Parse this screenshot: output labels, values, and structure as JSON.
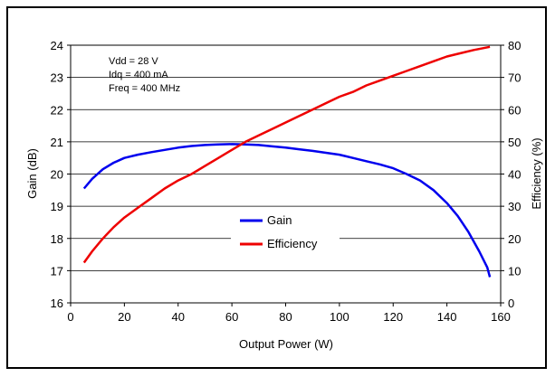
{
  "chart_data": {
    "type": "line",
    "xlabel": "Output Power (W)",
    "ylabel": "Gain (dB)",
    "y2label": "Efficiency (%)",
    "xlim": [
      0,
      160
    ],
    "ylim": [
      16,
      24
    ],
    "y2lim": [
      0,
      80
    ],
    "xticks": [
      0,
      20,
      40,
      60,
      80,
      100,
      120,
      140,
      160
    ],
    "yticks": [
      16,
      17,
      18,
      19,
      20,
      21,
      22,
      23,
      24
    ],
    "y2ticks": [
      0,
      10,
      20,
      30,
      40,
      50,
      60,
      70,
      80
    ],
    "grid": "horizontal",
    "legend": "center",
    "annotations": [
      "Vdd = 28 V",
      "Idq = 400 mA",
      "Freq = 400 MHz"
    ],
    "series": [
      {
        "name": "Gain",
        "axis": "left",
        "color": "#0000ee",
        "x": [
          5,
          8,
          12,
          16,
          20,
          25,
          30,
          35,
          40,
          45,
          50,
          55,
          60,
          65,
          70,
          75,
          80,
          85,
          90,
          95,
          100,
          105,
          110,
          115,
          120,
          125,
          130,
          135,
          140,
          144,
          148,
          152,
          155,
          156
        ],
        "y": [
          19.55,
          19.85,
          20.15,
          20.35,
          20.5,
          20.6,
          20.68,
          20.75,
          20.82,
          20.87,
          20.9,
          20.92,
          20.93,
          20.92,
          20.9,
          20.86,
          20.82,
          20.77,
          20.72,
          20.66,
          20.6,
          20.5,
          20.4,
          20.3,
          20.18,
          20.0,
          19.8,
          19.5,
          19.1,
          18.7,
          18.2,
          17.6,
          17.1,
          16.8
        ]
      },
      {
        "name": "Efficiency",
        "axis": "right",
        "color": "#ee0000",
        "x": [
          5,
          8,
          12,
          16,
          20,
          25,
          30,
          35,
          40,
          45,
          50,
          55,
          60,
          65,
          70,
          75,
          80,
          85,
          90,
          95,
          100,
          105,
          110,
          115,
          120,
          125,
          130,
          135,
          140,
          145,
          150,
          156
        ],
        "y": [
          12.5,
          16,
          20,
          23.5,
          26.5,
          29.5,
          32.5,
          35.5,
          38,
          40,
          42.5,
          45,
          47.5,
          50,
          52,
          54,
          56,
          58,
          60,
          62,
          64,
          65.5,
          67.5,
          69,
          70.5,
          72,
          73.5,
          75,
          76.5,
          77.5,
          78.5,
          79.5
        ]
      }
    ]
  }
}
